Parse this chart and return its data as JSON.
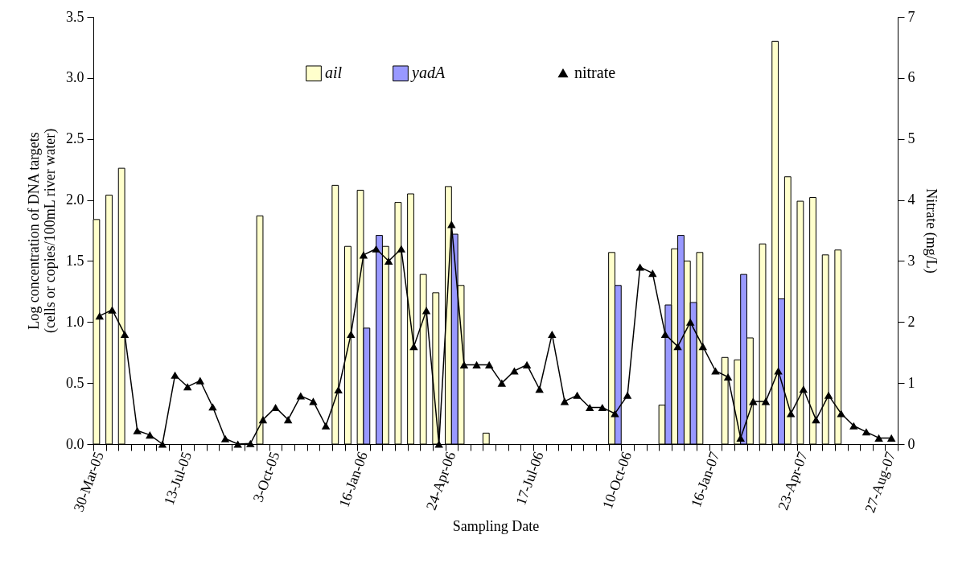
{
  "chart_data": {
    "type": "bar",
    "xlabel": "Sampling Date",
    "ylabel": "Log concentration of DNA targets\n(cells or copies/100mL river water)",
    "y2label": "Nitrate (mg/L)",
    "categories": [
      "30-Mar-05",
      null,
      null,
      null,
      null,
      null,
      null,
      "13-Jul-05",
      null,
      null,
      null,
      null,
      null,
      null,
      "3-Oct-05",
      null,
      null,
      null,
      null,
      null,
      null,
      "16-Jan-06",
      null,
      null,
      null,
      null,
      null,
      null,
      "24-Apr-06",
      null,
      null,
      null,
      null,
      null,
      null,
      "17-Jul-06",
      null,
      null,
      null,
      null,
      null,
      null,
      "10-Oct-06",
      null,
      null,
      null,
      null,
      null,
      null,
      "16-Jan-07",
      null,
      null,
      null,
      null,
      null,
      null,
      "23-Apr-07",
      null,
      null,
      null,
      null,
      null,
      null,
      "27-Aug-07"
    ],
    "series": [
      {
        "name": "ail",
        "color": "#ffffcc",
        "values": [
          1.84,
          2.04,
          2.26,
          null,
          null,
          null,
          null,
          null,
          null,
          null,
          null,
          null,
          null,
          1.87,
          null,
          null,
          null,
          null,
          null,
          2.12,
          1.62,
          2.08,
          null,
          1.62,
          1.98,
          2.05,
          1.39,
          1.24,
          2.11,
          1.3,
          null,
          0.09,
          null,
          null,
          null,
          null,
          null,
          null,
          null,
          null,
          null,
          1.57,
          null,
          null,
          null,
          0.32,
          1.6,
          1.5,
          1.57,
          null,
          0.71,
          0.69,
          0.87,
          1.64,
          3.3,
          2.19,
          1.99,
          2.02,
          1.55,
          1.59,
          null,
          null,
          null,
          null
        ]
      },
      {
        "name": "yadA",
        "color": "#9999ff",
        "values": [
          null,
          null,
          null,
          null,
          null,
          null,
          null,
          null,
          null,
          null,
          null,
          null,
          null,
          null,
          null,
          null,
          null,
          null,
          null,
          null,
          null,
          0.95,
          1.71,
          null,
          null,
          null,
          null,
          null,
          1.72,
          null,
          null,
          null,
          null,
          null,
          null,
          null,
          null,
          null,
          null,
          null,
          null,
          1.3,
          null,
          null,
          null,
          1.14,
          1.71,
          1.16,
          null,
          null,
          null,
          1.39,
          null,
          null,
          1.19,
          null,
          null,
          null,
          null,
          null,
          null,
          null,
          null,
          null
        ]
      },
      {
        "name": "nitrate",
        "type": "line",
        "axis": "y2",
        "color": "#000000",
        "marker": "triangle",
        "values": [
          2.1,
          2.2,
          1.8,
          0.22,
          0.15,
          0,
          1.13,
          0.94,
          1.04,
          0.61,
          0.09,
          0,
          0.01,
          0.4,
          0.6,
          0.4,
          0.79,
          0.7,
          0.3,
          0.89,
          1.8,
          3.1,
          3.2,
          3.0,
          3.2,
          1.6,
          2.19,
          0,
          3.6,
          1.3,
          1.3,
          1.3,
          1.0,
          1.2,
          1.3,
          0.9,
          1.8,
          0.7,
          0.8,
          0.6,
          0.6,
          0.5,
          0.8,
          2.9,
          2.8,
          1.8,
          1.6,
          2.0,
          1.6,
          1.2,
          1.1,
          0.1,
          0.7,
          0.7,
          1.2,
          0.5,
          0.9,
          0.4,
          0.8,
          0.5,
          0.3,
          0.2,
          0.1,
          0.1
        ]
      }
    ],
    "ylim": [
      0,
      3.5
    ],
    "yticks": [
      {
        "value": 0,
        "label": "0.0"
      },
      {
        "value": 0.5,
        "label": "0.5"
      },
      {
        "value": 1,
        "label": "1.0"
      },
      {
        "value": 1.5,
        "label": "1.5"
      },
      {
        "value": 2,
        "label": "2.0"
      },
      {
        "value": 2.5,
        "label": "2.5"
      },
      {
        "value": 3,
        "label": "3.0"
      },
      {
        "value": 3.5,
        "label": "3.5"
      }
    ],
    "y2lim": [
      0,
      7
    ],
    "y2ticks": [
      0,
      1,
      2,
      3,
      4,
      5,
      6,
      7
    ],
    "grid": false,
    "legend": "top",
    "line_style": "solid"
  }
}
